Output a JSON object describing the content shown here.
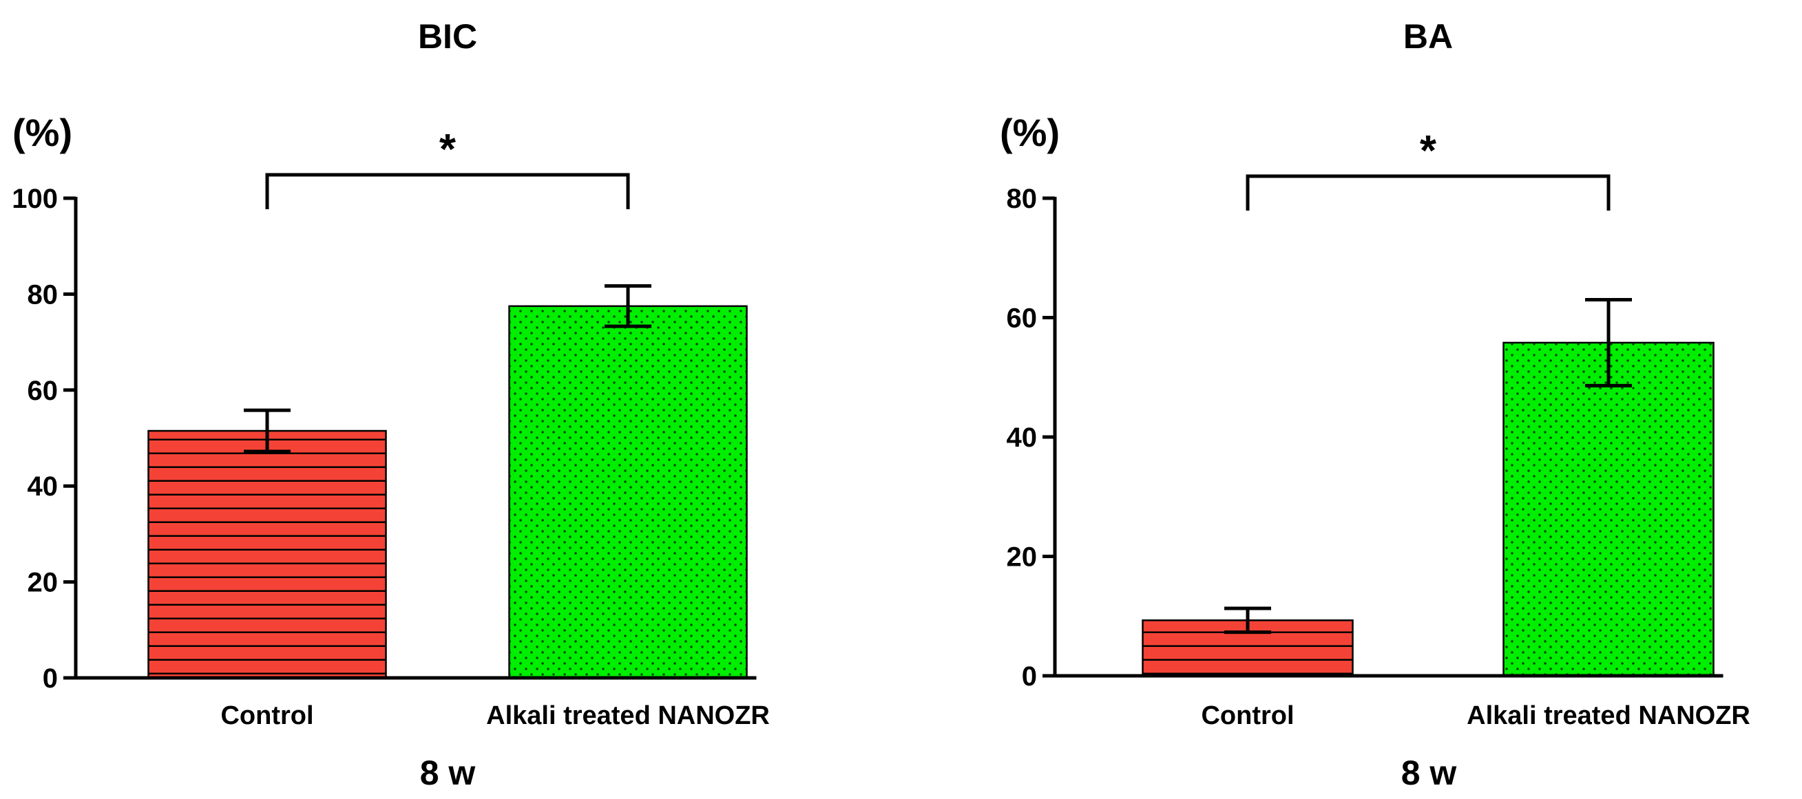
{
  "chart_data": [
    {
      "type": "bar",
      "title": "BIC",
      "ylabel": "(%)",
      "xlabel": "8 w",
      "categories": [
        "Control",
        "Alkali treated NANOZR"
      ],
      "values": [
        51.5,
        77.5
      ],
      "errors": [
        4.3,
        4.2
      ],
      "colors": [
        "#f44336",
        "#00ee00"
      ],
      "patterns": [
        "horizontal-lines",
        "dots"
      ],
      "ylim": [
        0,
        100
      ],
      "yticks": [
        0,
        20,
        40,
        60,
        80,
        100
      ],
      "significance": {
        "between": [
          0,
          1
        ],
        "label": "*"
      },
      "grid": false
    },
    {
      "type": "bar",
      "title": "BA",
      "ylabel": "(%)",
      "xlabel": "8 w",
      "categories": [
        "Control",
        "Alkali treated NANOZR"
      ],
      "values": [
        9.3,
        55.8
      ],
      "errors": [
        2.0,
        7.2
      ],
      "colors": [
        "#f44336",
        "#00ee00"
      ],
      "patterns": [
        "horizontal-lines",
        "dots"
      ],
      "ylim": [
        0,
        80
      ],
      "yticks": [
        0,
        20,
        40,
        60,
        80
      ],
      "significance": {
        "between": [
          0,
          1
        ],
        "label": "*"
      },
      "grid": false
    }
  ]
}
